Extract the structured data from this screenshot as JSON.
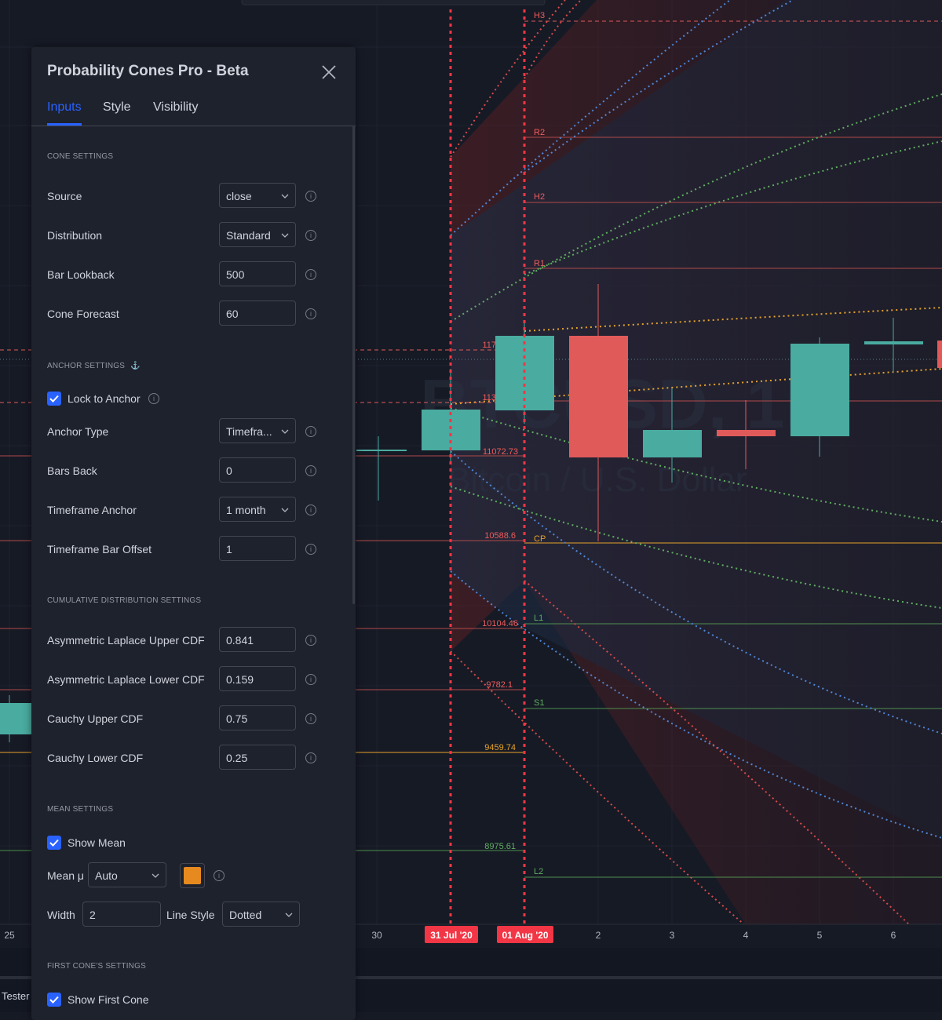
{
  "watermark": {
    "symbol": "BTCUSD, 1D",
    "name": "Bitcoin / U.S. Dollar"
  },
  "time_axis": {
    "ticks": [
      "25",
      "30",
      "2",
      "3",
      "4",
      "5",
      "6"
    ],
    "highlight_dates": [
      "31 Jul '20",
      "01 Aug '20"
    ],
    "tester_tab": "Tester"
  },
  "price_labels": [
    {
      "text": "117",
      "color": "#f05c5c"
    },
    {
      "text": "113",
      "color": "#f05c5c"
    },
    {
      "text": "11072.73",
      "color": "#f05c5c"
    },
    {
      "text": "10588.6",
      "color": "#f05c5c"
    },
    {
      "text": "10104.46",
      "color": "#f05c5c"
    },
    {
      "text": "9782.1",
      "color": "#f05c5c"
    },
    {
      "text": "9459.74",
      "color": "#e6a229"
    },
    {
      "text": "8975.61",
      "color": "#5fae5f"
    }
  ],
  "pivot_labels": [
    {
      "text": "H3",
      "color": "#f05c5c"
    },
    {
      "text": "R2",
      "color": "#f05c5c"
    },
    {
      "text": "H2",
      "color": "#f05c5c"
    },
    {
      "text": "R1",
      "color": "#f05c5c"
    },
    {
      "text": "CP",
      "color": "#e6a229"
    },
    {
      "text": "L1",
      "color": "#5fae5f"
    },
    {
      "text": "S1",
      "color": "#5fae5f"
    },
    {
      "text": "L2",
      "color": "#5fae5f"
    }
  ],
  "colors": {
    "up": "#4aaba0",
    "down": "#e05a5a",
    "accent": "#2962ff",
    "mean_color": "#e68a1f"
  },
  "dialog": {
    "title": "Probability Cones Pro - Beta",
    "tabs": [
      "Inputs",
      "Style",
      "Visibility"
    ],
    "active_tab": "Inputs",
    "sections": {
      "cone": "CONE SETTINGS",
      "anchor": "ANCHOR SETTINGS",
      "cdf": "CUMULATIVE DISTRIBUTION SETTINGS",
      "mean": "MEAN SETTINGS",
      "first_cone": "FIRST CONE'S SETTINGS"
    },
    "anchor_icon": "⚓",
    "info_glyph": "i",
    "fields": {
      "source": {
        "label": "Source",
        "value": "close"
      },
      "distribution": {
        "label": "Distribution",
        "value": "Standard"
      },
      "bar_lookback": {
        "label": "Bar Lookback",
        "value": "500"
      },
      "cone_forecast": {
        "label": "Cone Forecast",
        "value": "60"
      },
      "lock_to_anchor": {
        "label": "Lock to Anchor",
        "checked": true
      },
      "anchor_type": {
        "label": "Anchor Type",
        "value": "Timefra..."
      },
      "bars_back": {
        "label": "Bars Back",
        "value": "0"
      },
      "timeframe_anchor": {
        "label": "Timeframe Anchor",
        "value": "1 month"
      },
      "timeframe_bar_offset": {
        "label": "Timeframe Bar Offset",
        "value": "1"
      },
      "al_upper": {
        "label": "Asymmetric Laplace Upper CDF",
        "value": "0.841"
      },
      "al_lower": {
        "label": "Asymmetric Laplace Lower CDF",
        "value": "0.159"
      },
      "cauchy_upper": {
        "label": "Cauchy Upper CDF",
        "value": "0.75"
      },
      "cauchy_lower": {
        "label": "Cauchy Lower CDF",
        "value": "0.25"
      },
      "show_mean": {
        "label": "Show Mean",
        "checked": true
      },
      "mean_mu": {
        "label": "Mean μ",
        "value": "Auto"
      },
      "width": {
        "label": "Width",
        "value": "2"
      },
      "line_style": {
        "label": "Line Style",
        "value": "Dotted"
      },
      "show_first_cone": {
        "label": "Show First Cone",
        "checked": true
      }
    }
  }
}
